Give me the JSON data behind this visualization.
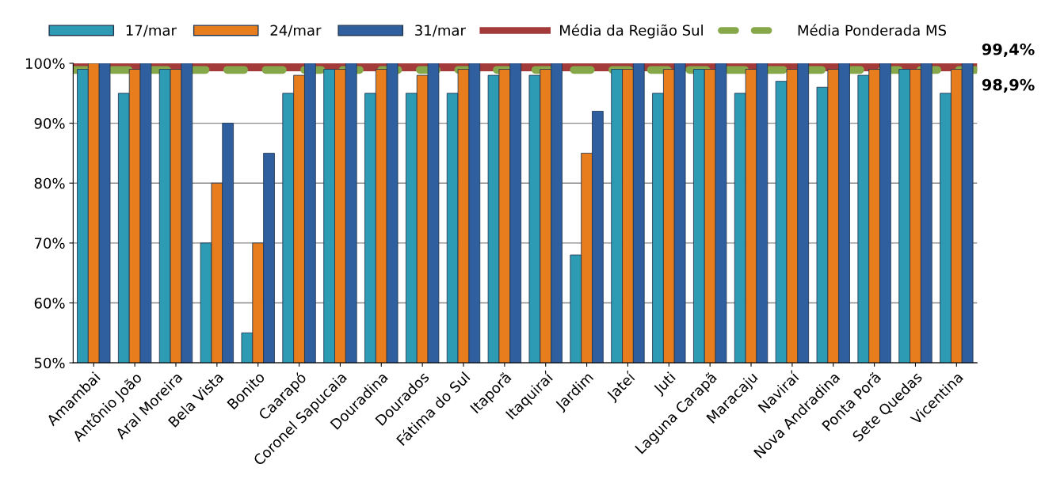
{
  "chart_data": {
    "type": "bar",
    "categories": [
      "Amambai",
      "Antônio João",
      "Aral Moreira",
      "Bela Vista",
      "Bonito",
      "Caarapó",
      "Coronel Sapucaia",
      "Douradina",
      "Dourados",
      "Fátima do Sul",
      "Itaporã",
      "Itaquiraí",
      "Jardim",
      "Jateí",
      "Juti",
      "Laguna Carapã",
      "Maracaju",
      "Naviraí",
      "Nova Andradina",
      "Ponta Porã",
      "Sete Quedas",
      "Vicentina"
    ],
    "series": [
      {
        "name": "17/mar",
        "color": "#2e9bb5",
        "values": [
          99,
          95,
          99,
          70,
          55,
          95,
          99,
          95,
          95,
          95,
          98,
          98,
          68,
          99,
          95,
          99,
          95,
          97,
          96,
          98,
          99,
          95
        ]
      },
      {
        "name": "24/mar",
        "color": "#e87d1e",
        "values": [
          100,
          99,
          99,
          80,
          70,
          98,
          99,
          99,
          98,
          99,
          99,
          99,
          85,
          99,
          99,
          99,
          99,
          99,
          99,
          99,
          99,
          99
        ]
      },
      {
        "name": "31/mar",
        "color": "#2f5f9e",
        "values": [
          100,
          100,
          100,
          90,
          85,
          100,
          100,
          100,
          100,
          100,
          100,
          100,
          92,
          100,
          100,
          100,
          100,
          100,
          100,
          100,
          100,
          100
        ]
      }
    ],
    "ref_lines": [
      {
        "axis": "y",
        "value": 99.4,
        "label": "Média da Região Sul",
        "color": "#a33b3b",
        "line_style": "solid"
      },
      {
        "axis": "y",
        "value": 98.9,
        "label": "Média Ponderada MS",
        "color": "#86a84a",
        "line_style": "dashed"
      }
    ],
    "annotations": [
      {
        "text": "99,4%",
        "x": "Vicentina",
        "y": 99.4
      },
      {
        "text": "98,9%",
        "x": "Vicentina",
        "y": 98.9
      }
    ],
    "ylim": [
      50,
      100
    ],
    "yticks": [
      {
        "value": 50,
        "label": "50%"
      },
      {
        "value": 60,
        "label": "60%"
      },
      {
        "value": 70,
        "label": "70%"
      },
      {
        "value": 80,
        "label": "80%"
      },
      {
        "value": 90,
        "label": "90%"
      },
      {
        "value": 100,
        "label": "100%"
      }
    ],
    "grid": "y",
    "legend": "top"
  }
}
